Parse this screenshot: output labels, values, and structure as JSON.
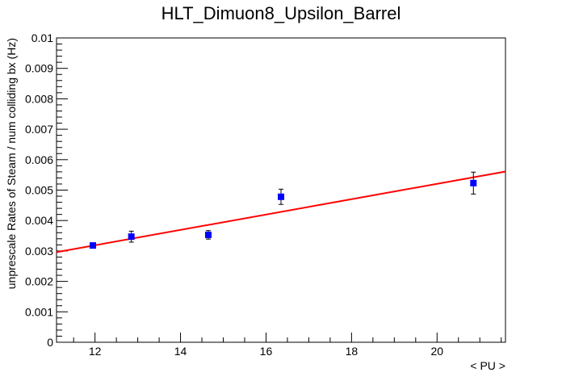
{
  "chart_data": {
    "type": "scatter",
    "title": "HLT_Dimuon8_Upsilon_Barrel",
    "xlabel": "< PU >",
    "ylabel": "unprescale Rates of Steam / num colliding bx (Hz)",
    "xlim": [
      11.1,
      21.6
    ],
    "ylim": [
      0,
      0.01
    ],
    "x_ticks": [
      12,
      14,
      16,
      18,
      20
    ],
    "x_tick_labels": [
      "12",
      "14",
      "16",
      "18",
      "20"
    ],
    "y_ticks": [
      0,
      0.001,
      0.002,
      0.003,
      0.004,
      0.005,
      0.006,
      0.007,
      0.008,
      0.009,
      0.01
    ],
    "y_tick_labels": [
      "0",
      "0.001",
      "0.002",
      "0.003",
      "0.004",
      "0.005",
      "0.006",
      "0.007",
      "0.008",
      "0.009",
      "0.01"
    ],
    "grid": false,
    "series": [
      {
        "kind": "points",
        "color": "#0000ff",
        "points": [
          {
            "x": 11.95,
            "y": 0.00318,
            "err": 8e-05
          },
          {
            "x": 12.85,
            "y": 0.00347,
            "err": 0.00018
          },
          {
            "x": 14.65,
            "y": 0.00353,
            "err": 0.00014
          },
          {
            "x": 16.35,
            "y": 0.00478,
            "err": 0.00025
          },
          {
            "x": 20.85,
            "y": 0.00523,
            "err": 0.00036
          }
        ]
      },
      {
        "kind": "fit-line",
        "color": "#ff0000",
        "x": [
          11.1,
          21.6
        ],
        "y": [
          0.00296,
          0.00561
        ]
      }
    ]
  }
}
